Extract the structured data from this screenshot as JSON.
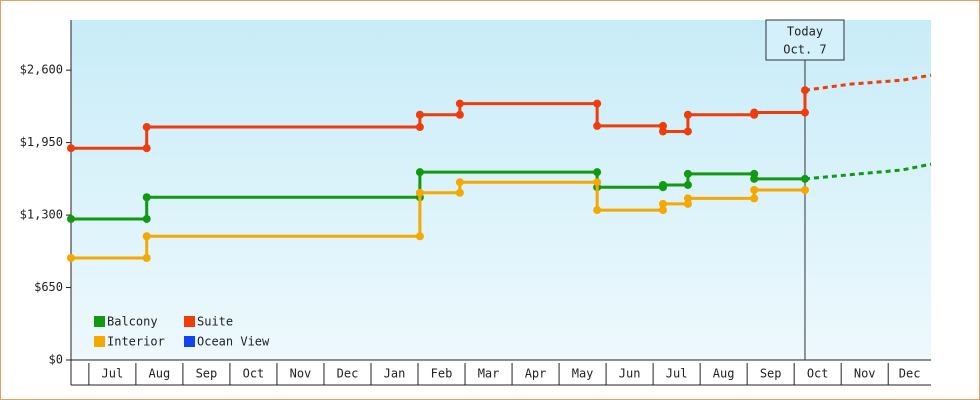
{
  "chart_data": {
    "type": "line",
    "xlim": [
      -0.38,
      17.91
    ],
    "ylim": [
      0,
      3050
    ],
    "yticks": [
      {
        "value": 0,
        "label": "$0"
      },
      {
        "value": 650,
        "label": "$650"
      },
      {
        "value": 1300,
        "label": "$1,300"
      },
      {
        "value": 1950,
        "label": "$1,950"
      },
      {
        "value": 2600,
        "label": "$2,600"
      }
    ],
    "xticks": [
      {
        "value": 0.5,
        "label": "Jul"
      },
      {
        "value": 1.5,
        "label": "Aug"
      },
      {
        "value": 2.5,
        "label": "Sep"
      },
      {
        "value": 3.5,
        "label": "Oct"
      },
      {
        "value": 4.5,
        "label": "Nov"
      },
      {
        "value": 5.5,
        "label": "Dec"
      },
      {
        "value": 6.5,
        "label": "Jan"
      },
      {
        "value": 7.5,
        "label": "Feb"
      },
      {
        "value": 8.5,
        "label": "Mar"
      },
      {
        "value": 9.5,
        "label": "Apr"
      },
      {
        "value": 10.5,
        "label": "May"
      },
      {
        "value": 11.5,
        "label": "Jun"
      },
      {
        "value": 12.5,
        "label": "Jul"
      },
      {
        "value": 13.5,
        "label": "Aug"
      },
      {
        "value": 14.5,
        "label": "Sep"
      },
      {
        "value": 15.5,
        "label": "Oct"
      },
      {
        "value": 16.5,
        "label": "Nov"
      },
      {
        "value": 17.5,
        "label": "Dec"
      }
    ],
    "today": {
      "x": 15.23,
      "label": "Today",
      "date": "Oct. 7"
    },
    "series": [
      {
        "name": "Balcony",
        "color": "#119911",
        "x": [
          -0.38,
          1.23,
          1.23,
          7.04,
          7.04,
          10.81,
          10.81,
          12.21,
          12.21,
          12.74,
          12.74,
          14.15,
          14.15,
          15.23
        ],
        "values": [
          1265,
          1265,
          1460,
          1460,
          1685,
          1685,
          1550,
          1550,
          1570,
          1570,
          1670,
          1670,
          1625,
          1625
        ],
        "forecast_x": [
          15.23,
          17.3,
          17.91
        ],
        "forecast_values": [
          1625,
          1705,
          1757
        ]
      },
      {
        "name": "Suite",
        "color": "#f03c0a",
        "x": [
          -0.38,
          1.23,
          1.23,
          7.04,
          7.04,
          7.89,
          7.89,
          10.81,
          10.81,
          12.21,
          12.21,
          12.74,
          12.74,
          14.15,
          14.15,
          15.23,
          15.23
        ],
        "values": [
          1900,
          1900,
          2090,
          2090,
          2200,
          2200,
          2300,
          2300,
          2100,
          2100,
          2050,
          2050,
          2200,
          2200,
          2220,
          2220,
          2420
        ],
        "forecast_x": [
          15.23,
          16.2,
          17.3,
          17.91
        ],
        "forecast_values": [
          2420,
          2475,
          2510,
          2555
        ]
      },
      {
        "name": "Interior",
        "color": "#f5a800",
        "x": [
          -0.38,
          1.23,
          1.23,
          7.04,
          7.04,
          7.89,
          7.89,
          10.81,
          10.81,
          12.21,
          12.21,
          12.74,
          12.74,
          14.15,
          14.15,
          15.23
        ],
        "values": [
          915,
          915,
          1110,
          1110,
          1500,
          1500,
          1595,
          1595,
          1345,
          1345,
          1400,
          1400,
          1450,
          1450,
          1525,
          1525
        ]
      },
      {
        "name": "Ocean View",
        "color": "#1144ee",
        "x": [],
        "values": []
      }
    ]
  }
}
